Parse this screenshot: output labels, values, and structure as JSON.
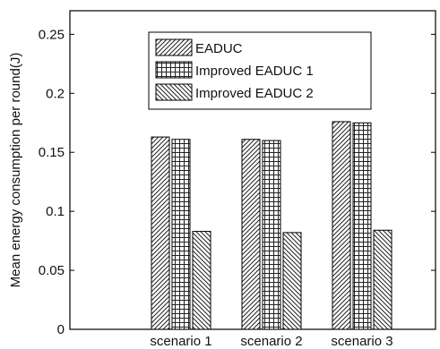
{
  "chart_data": {
    "type": "bar",
    "title": "",
    "xlabel": "",
    "ylabel": "Mean energy consumption per round(J)",
    "categories": [
      "scenario 1",
      "scenario 2",
      "scenario 3"
    ],
    "ylim": [
      0,
      0.27
    ],
    "yticks": [
      0,
      0.05,
      0.1,
      0.15,
      0.2,
      0.25
    ],
    "ytick_labels": [
      "0",
      "0.05",
      "0.1",
      "0.15",
      "0.2",
      "0.25"
    ],
    "grid": false,
    "legend_position": "top",
    "series": [
      {
        "name": "EADUC",
        "values": [
          0.163,
          0.161,
          0.176
        ],
        "pattern": "diagonal-forward"
      },
      {
        "name": "Improved EADUC 1",
        "values": [
          0.161,
          0.16,
          0.175
        ],
        "pattern": "grid"
      },
      {
        "name": "Improved EADUC 2",
        "values": [
          0.083,
          0.082,
          0.084
        ],
        "pattern": "diagonal-back"
      }
    ],
    "colors": {
      "axis": "#000000",
      "bar_fill": "#ffffff",
      "hatch": "#222222"
    }
  }
}
